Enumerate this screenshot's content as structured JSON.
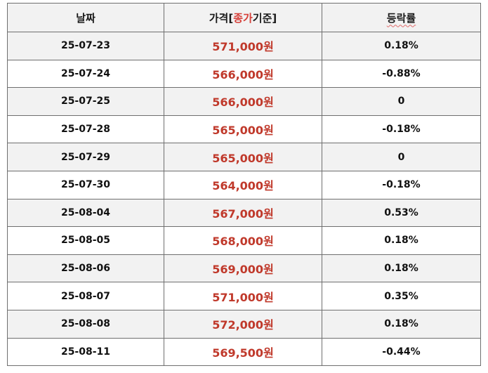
{
  "header": {
    "date": "날짜",
    "price_prefix": "가격[",
    "price_highlight": "종가",
    "price_suffix": "기준]",
    "change": "등락률"
  },
  "colors": {
    "price_text": "#c0392b",
    "header_bg": "#f2f2f2",
    "stripe_bg": "#f2f2f2",
    "border": "#6f6f6f"
  },
  "rows": [
    {
      "date": "25-07-23",
      "price": "571,000원",
      "change": "0.18%"
    },
    {
      "date": "25-07-24",
      "price": "566,000원",
      "change": "-0.88%"
    },
    {
      "date": "25-07-25",
      "price": "566,000원",
      "change": "0"
    },
    {
      "date": "25-07-28",
      "price": "565,000원",
      "change": "-0.18%"
    },
    {
      "date": "25-07-29",
      "price": "565,000원",
      "change": "0"
    },
    {
      "date": "25-07-30",
      "price": "564,000원",
      "change": "-0.18%"
    },
    {
      "date": "25-08-04",
      "price": "567,000원",
      "change": "0.53%"
    },
    {
      "date": "25-08-05",
      "price": "568,000원",
      "change": "0.18%"
    },
    {
      "date": "25-08-06",
      "price": "569,000원",
      "change": "0.18%"
    },
    {
      "date": "25-08-07",
      "price": "571,000원",
      "change": "0.35%"
    },
    {
      "date": "25-08-08",
      "price": "572,000원",
      "change": "0.18%"
    },
    {
      "date": "25-08-11",
      "price": "569,500원",
      "change": "-0.44%"
    }
  ]
}
